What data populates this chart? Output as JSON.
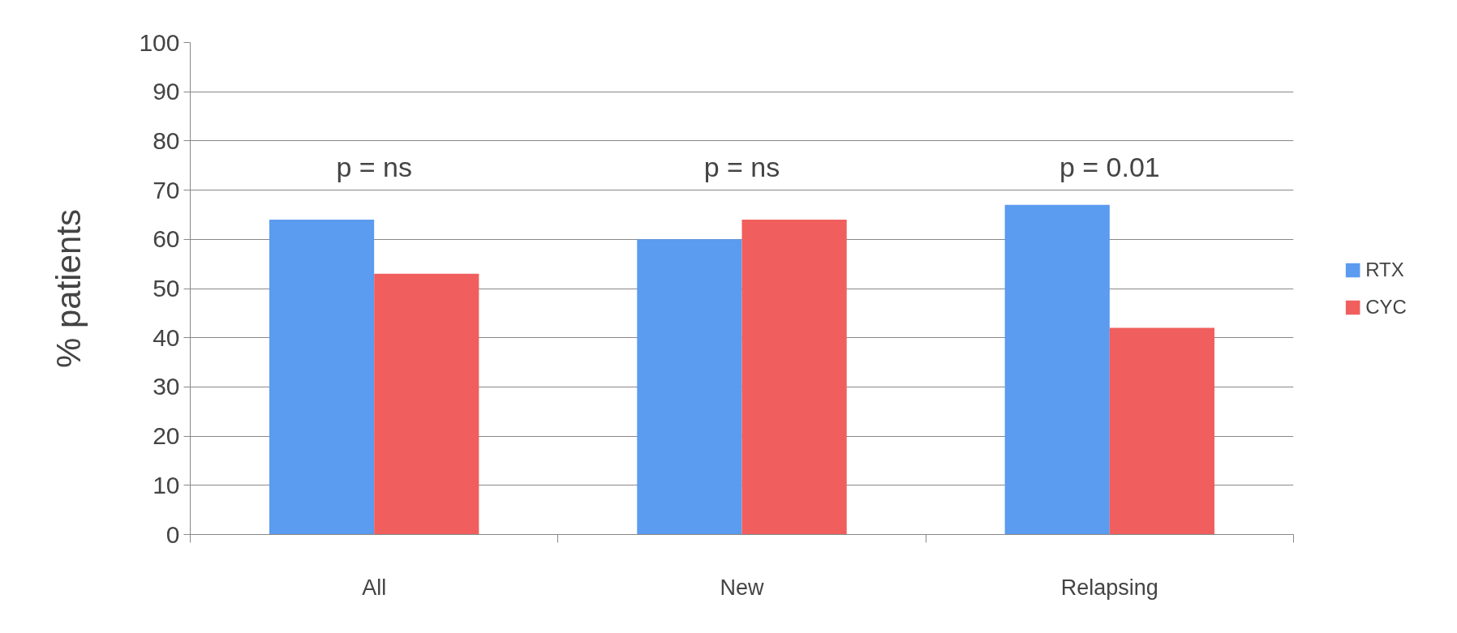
{
  "chart_data": {
    "type": "bar",
    "ylabel": "% patients",
    "categories": [
      "All",
      "New",
      "Relapsing"
    ],
    "series": [
      {
        "name": "RTX",
        "color": "#5b9bf0",
        "values": [
          64,
          60,
          67
        ]
      },
      {
        "name": "CYC",
        "color": "#f05f5d",
        "values": [
          53,
          64,
          42
        ]
      }
    ],
    "ylim": [
      0,
      100
    ],
    "yticks": [
      0,
      10,
      20,
      30,
      40,
      50,
      60,
      70,
      80,
      90,
      100
    ],
    "grid": "y",
    "legend": "right",
    "annotations": [
      "p = ns",
      "p = ns",
      "p = 0.01"
    ]
  }
}
